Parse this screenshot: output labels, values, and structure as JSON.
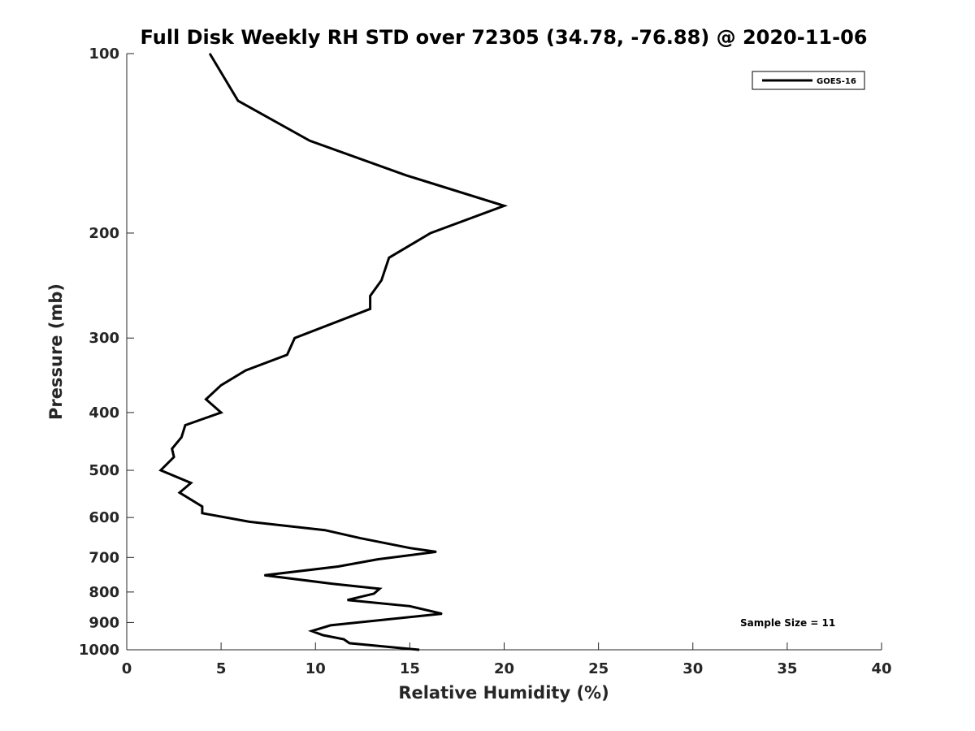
{
  "chart_data": {
    "type": "line",
    "title": "Full Disk Weekly RH STD over 72305 (34.78, -76.88) @ 2020-11-06",
    "xlabel": "Relative Humidity (%)",
    "ylabel": "Pressure (mb)",
    "xlim": [
      0,
      40
    ],
    "ylim": [
      100,
      1000
    ],
    "y_scale": "log",
    "y_reversed": true,
    "xticks": [
      "0",
      "5",
      "10",
      "15",
      "20",
      "25",
      "30",
      "35",
      "40"
    ],
    "yticks": [
      "100",
      "200",
      "300",
      "400",
      "500",
      "600",
      "700",
      "800",
      "900",
      "1000"
    ],
    "grid": false,
    "legend": {
      "position": "top-right",
      "entries": [
        "GOES-16"
      ]
    },
    "annotation": "Sample Size = 11",
    "series": [
      {
        "name": "GOES-16",
        "color": "#000000",
        "points": [
          [
            4.4,
            100
          ],
          [
            5.9,
            120
          ],
          [
            9.7,
            140
          ],
          [
            14.8,
            160
          ],
          [
            20.0,
            180
          ],
          [
            16.1,
            200
          ],
          [
            13.9,
            220
          ],
          [
            13.5,
            240
          ],
          [
            12.9,
            255
          ],
          [
            12.9,
            268
          ],
          [
            8.9,
            300
          ],
          [
            8.5,
            320
          ],
          [
            6.3,
            340
          ],
          [
            5.0,
            360
          ],
          [
            4.2,
            380
          ],
          [
            5.0,
            400
          ],
          [
            3.1,
            420
          ],
          [
            2.9,
            440
          ],
          [
            2.4,
            460
          ],
          [
            2.5,
            475
          ],
          [
            1.8,
            500
          ],
          [
            3.4,
            525
          ],
          [
            2.8,
            545
          ],
          [
            4.0,
            575
          ],
          [
            4.0,
            590
          ],
          [
            6.5,
            610
          ],
          [
            10.5,
            630
          ],
          [
            12.4,
            650
          ],
          [
            15.0,
            675
          ],
          [
            16.4,
            685
          ],
          [
            13.3,
            705
          ],
          [
            11.2,
            725
          ],
          [
            7.3,
            750
          ],
          [
            10.9,
            775
          ],
          [
            13.4,
            790
          ],
          [
            13.1,
            805
          ],
          [
            11.7,
            825
          ],
          [
            15.0,
            845
          ],
          [
            16.7,
            870
          ],
          [
            10.8,
            910
          ],
          [
            9.8,
            930
          ],
          [
            10.4,
            945
          ],
          [
            11.5,
            960
          ],
          [
            11.8,
            975
          ],
          [
            15.5,
            1000
          ]
        ]
      }
    ]
  }
}
